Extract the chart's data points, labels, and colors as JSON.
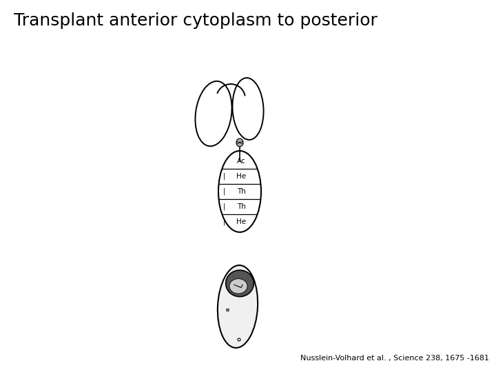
{
  "title": "Transplant anterior cytoplasm to posterior",
  "citation": "Nusslein-Volhard et al. , Science 238, 1675 -1681",
  "bg_color": "#ffffff",
  "title_fontsize": 18,
  "citation_fontsize": 8,
  "segment_labels": [
    "Ac",
    "He",
    "Th",
    "Th",
    "He"
  ],
  "fig_width": 7.2,
  "fig_height": 5.4,
  "fig_dpi": 100
}
